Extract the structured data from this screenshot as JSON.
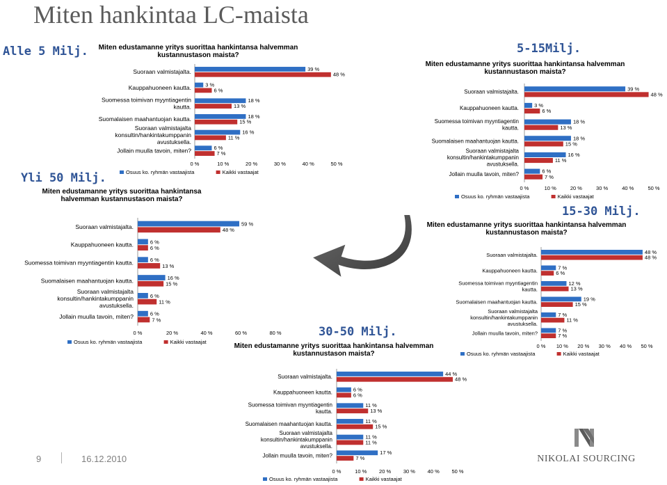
{
  "slide": {
    "title": "Miten hankintaa LC-maista",
    "page_number": "9",
    "date": "16.12.2010",
    "logo_text": "NIKOLAI SOURCING",
    "colors": {
      "series1": "#2f6fc4",
      "series2": "#c0302f",
      "segment_label": "#2f5496"
    }
  },
  "categories": [
    "Suoraan valmistajalta.",
    "Kauppahuoneen kautta.",
    "Suomessa toimivan myyntiagentin kautta.",
    "Suomalaisen maahantuojan kautta.",
    "Suoraan valmistajalta konsultin/hankintakumppanin avustuksella.",
    "Jollain muulla tavoin, miten?"
  ],
  "chart_data": [
    {
      "segment": "Alle 5 Milj.",
      "type": "bar",
      "title": "Miten edustamanne yritys suorittaa hankintansa halvemman kustannustason maista?",
      "series": [
        {
          "name": "Osuus ko. ryhmän vastaajista",
          "values": [
            39,
            3,
            18,
            18,
            16,
            6
          ]
        },
        {
          "name": "Kaikki vastaajat",
          "values": [
            48,
            6,
            13,
            15,
            11,
            7
          ]
        }
      ],
      "x_ticks": [
        "0 %",
        "10 %",
        "20 %",
        "30 %",
        "40 %",
        "50 %"
      ],
      "xlim": [
        0,
        50
      ]
    },
    {
      "segment": "5-15Milj.",
      "type": "bar",
      "title": "Miten edustamanne yritys suorittaa hankintansa halvemman kustannustason maista?",
      "series": [
        {
          "name": "Osuus ko. ryhmän vastaajista",
          "values": [
            39,
            3,
            18,
            18,
            16,
            6
          ]
        },
        {
          "name": "Kaikki vastaajat",
          "values": [
            48,
            6,
            13,
            15,
            11,
            7
          ]
        }
      ],
      "x_ticks": [
        "0 %",
        "10 %",
        "20 %",
        "30 %",
        "40 %",
        "50 %"
      ],
      "xlim": [
        0,
        50
      ]
    },
    {
      "segment": "Yli 50 Milj.",
      "type": "bar",
      "title": "Miten edustamanne yritys suorittaa hankintansa halvemman kustannustason maista?",
      "series": [
        {
          "name": "Osuus ko. ryhmän vastaajista",
          "values": [
            59,
            6,
            6,
            16,
            6,
            6
          ]
        },
        {
          "name": "Kaikki vastaajat",
          "values": [
            48,
            6,
            13,
            15,
            11,
            7
          ]
        }
      ],
      "x_ticks": [
        "0 %",
        "20 %",
        "40 %",
        "60 %",
        "80 %"
      ],
      "xlim": [
        0,
        80
      ]
    },
    {
      "segment": "15-30 Milj.",
      "type": "bar",
      "title": "Miten edustamanne yritys suorittaa hankintansa halvemman kustannustason maista?",
      "series": [
        {
          "name": "Osuus ko. ryhmän vastaajista",
          "values": [
            48,
            7,
            12,
            19,
            7,
            7
          ]
        },
        {
          "name": "Kaikki vastaajat",
          "values": [
            48,
            6,
            13,
            15,
            11,
            7
          ]
        }
      ],
      "x_ticks": [
        "0 %",
        "10 %",
        "20 %",
        "30 %",
        "40 %",
        "50 %"
      ],
      "xlim": [
        0,
        50
      ]
    },
    {
      "segment": "30-50 Milj.",
      "type": "bar",
      "title": "Miten edustamanne yritys suorittaa hankintansa halvemman kustannustason maista?",
      "series": [
        {
          "name": "Osuus ko. ryhmän vastaajista",
          "values": [
            44,
            6,
            11,
            11,
            11,
            17
          ]
        },
        {
          "name": "Kaikki vastaajat",
          "values": [
            48,
            6,
            13,
            15,
            11,
            7
          ]
        }
      ],
      "x_ticks": [
        "0 %",
        "10 %",
        "20 %",
        "30 %",
        "40 %",
        "50 %"
      ],
      "xlim": [
        0,
        50
      ]
    }
  ]
}
